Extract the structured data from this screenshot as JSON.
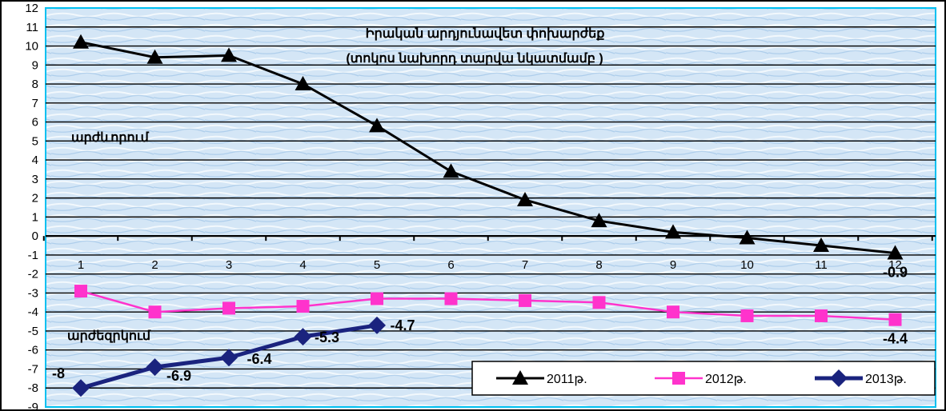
{
  "chart_data": {
    "type": "line",
    "title": "Իրական արդյունավետ փոխարժեք",
    "subtitle": "(տոկոս նախորդ տարվա նկատմամբ )",
    "xlabel": "",
    "ylabel": "",
    "categories": [
      "1",
      "2",
      "3",
      "4",
      "5",
      "6",
      "7",
      "8",
      "9",
      "10",
      "11",
      "12"
    ],
    "ylim": [
      -9,
      12
    ],
    "yticks": [
      "12",
      "11",
      "10",
      "9",
      "8",
      "7",
      "6",
      "5",
      "4",
      "3",
      "2",
      "1",
      "0",
      "-1",
      "-2",
      "-3",
      "-4",
      "-5",
      "-6",
      "-7",
      "-8",
      "-9"
    ],
    "grid": true,
    "legend_position": "bottom-right",
    "annotations": {
      "appreciation": "արժևորում",
      "depreciation": "արժեզրկում"
    },
    "series": [
      {
        "name": "2011թ.",
        "color": "#000000",
        "marker": "triangle",
        "values": [
          10.2,
          9.4,
          9.5,
          8.0,
          5.8,
          3.4,
          1.9,
          0.8,
          0.2,
          -0.1,
          -0.5,
          -0.9
        ],
        "labels": [
          "",
          "",
          "",
          "",
          "",
          "",
          "",
          "",
          "",
          "",
          "",
          "-0.9"
        ]
      },
      {
        "name": "2012թ.",
        "color": "#ff33cc",
        "marker": "square",
        "values": [
          -2.9,
          -4.0,
          -3.8,
          -3.7,
          -3.3,
          -3.3,
          -3.4,
          -3.5,
          -4.0,
          -4.2,
          -4.2,
          -4.4
        ],
        "labels": [
          "",
          "",
          "",
          "",
          "",
          "",
          "",
          "",
          "",
          "",
          "",
          "-4.4"
        ]
      },
      {
        "name": "2013թ.",
        "color": "#1a237e",
        "marker": "diamond",
        "values": [
          -8.0,
          -6.9,
          -6.4,
          -5.3,
          -4.7,
          null,
          null,
          null,
          null,
          null,
          null,
          null
        ],
        "labels": [
          "-8",
          "-6.9",
          "-6.4",
          "-5.3",
          "-4.7",
          "",
          "",
          "",
          "",
          "",
          "",
          ""
        ]
      }
    ]
  }
}
